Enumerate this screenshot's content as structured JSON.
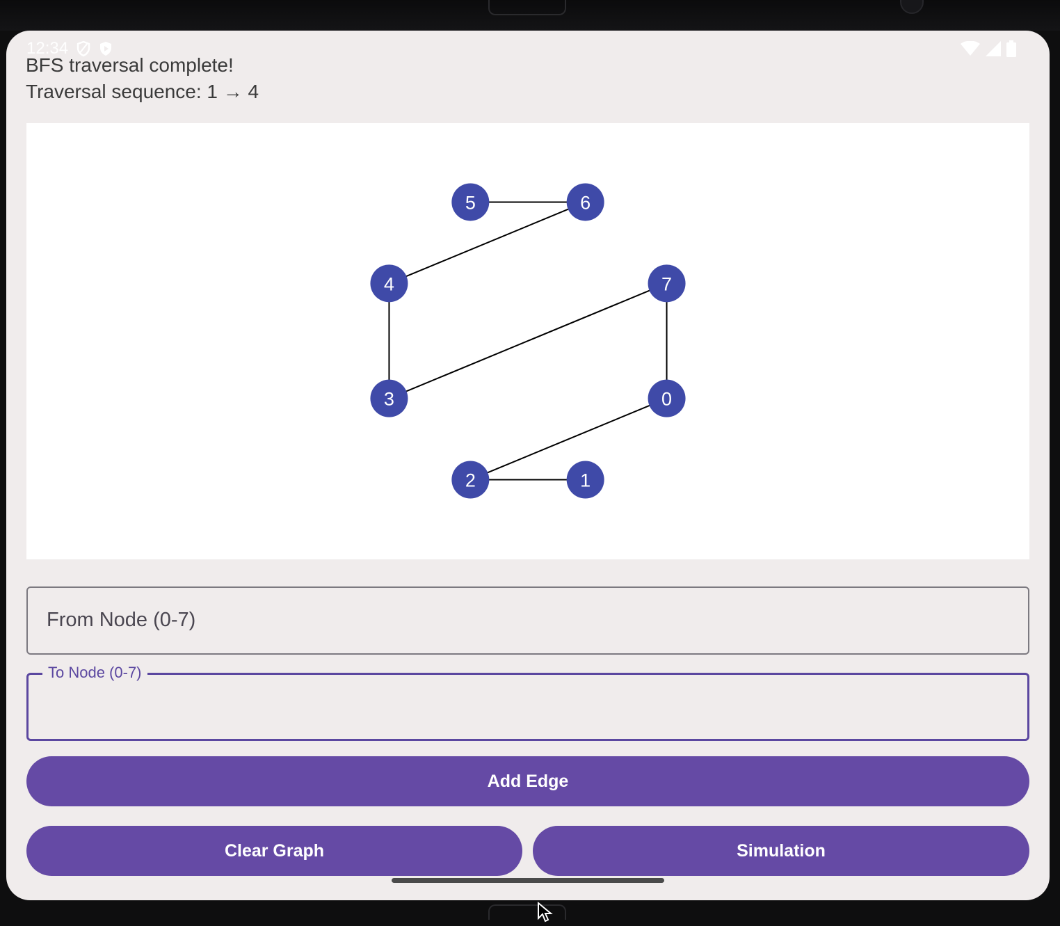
{
  "status_bar": {
    "time": "12:34",
    "left_icons": [
      "shield-outline-icon",
      "shield-play-icon"
    ],
    "right_icons": [
      "wifi-icon",
      "signal-icon",
      "battery-icon"
    ]
  },
  "messages": {
    "line1": "BFS traversal complete!",
    "line2": "Traversal sequence: 1 → 4"
  },
  "graph": {
    "node_color": "#3f4aa8",
    "edge_color": "#000000",
    "nodes": [
      {
        "id": 0,
        "label": "0"
      },
      {
        "id": 1,
        "label": "1"
      },
      {
        "id": 2,
        "label": "2"
      },
      {
        "id": 3,
        "label": "3"
      },
      {
        "id": 4,
        "label": "4"
      },
      {
        "id": 5,
        "label": "5"
      },
      {
        "id": 6,
        "label": "6"
      },
      {
        "id": 7,
        "label": "7"
      }
    ],
    "edges": [
      [
        5,
        6
      ],
      [
        6,
        4
      ],
      [
        4,
        3
      ],
      [
        3,
        7
      ],
      [
        7,
        0
      ],
      [
        0,
        2
      ],
      [
        2,
        1
      ]
    ]
  },
  "form": {
    "from_placeholder": "From Node (0-7)",
    "to_label": "To Node (0-7)",
    "to_value": ""
  },
  "buttons": {
    "add_edge": "Add Edge",
    "clear_graph": "Clear Graph",
    "simulation": "Simulation"
  },
  "colors": {
    "accent": "#654aa5",
    "focused_border": "#5b47a0",
    "screen_bg": "#f0ecec"
  }
}
